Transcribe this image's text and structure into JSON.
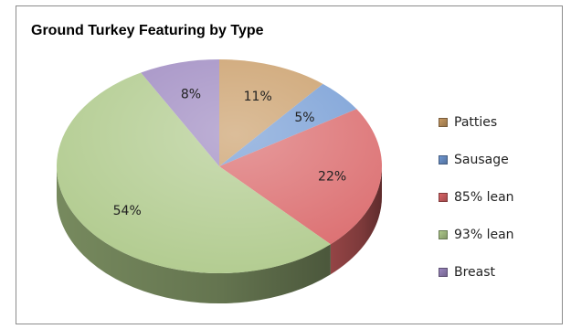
{
  "chart_data": {
    "type": "pie",
    "title": "Ground Turkey Featuring by Type",
    "categories": [
      "Patties",
      "Sausage",
      "85% lean",
      "93% lean",
      "Breast"
    ],
    "values": [
      11,
      5,
      22,
      54,
      8
    ],
    "data_labels": [
      "11%",
      "5%",
      "22%",
      "54%",
      "8%"
    ],
    "colors": [
      "#c89a63",
      "#6f98d3",
      "#d96466",
      "#aec98a",
      "#9b86bf"
    ],
    "legend_position": "right",
    "three_d": true
  }
}
